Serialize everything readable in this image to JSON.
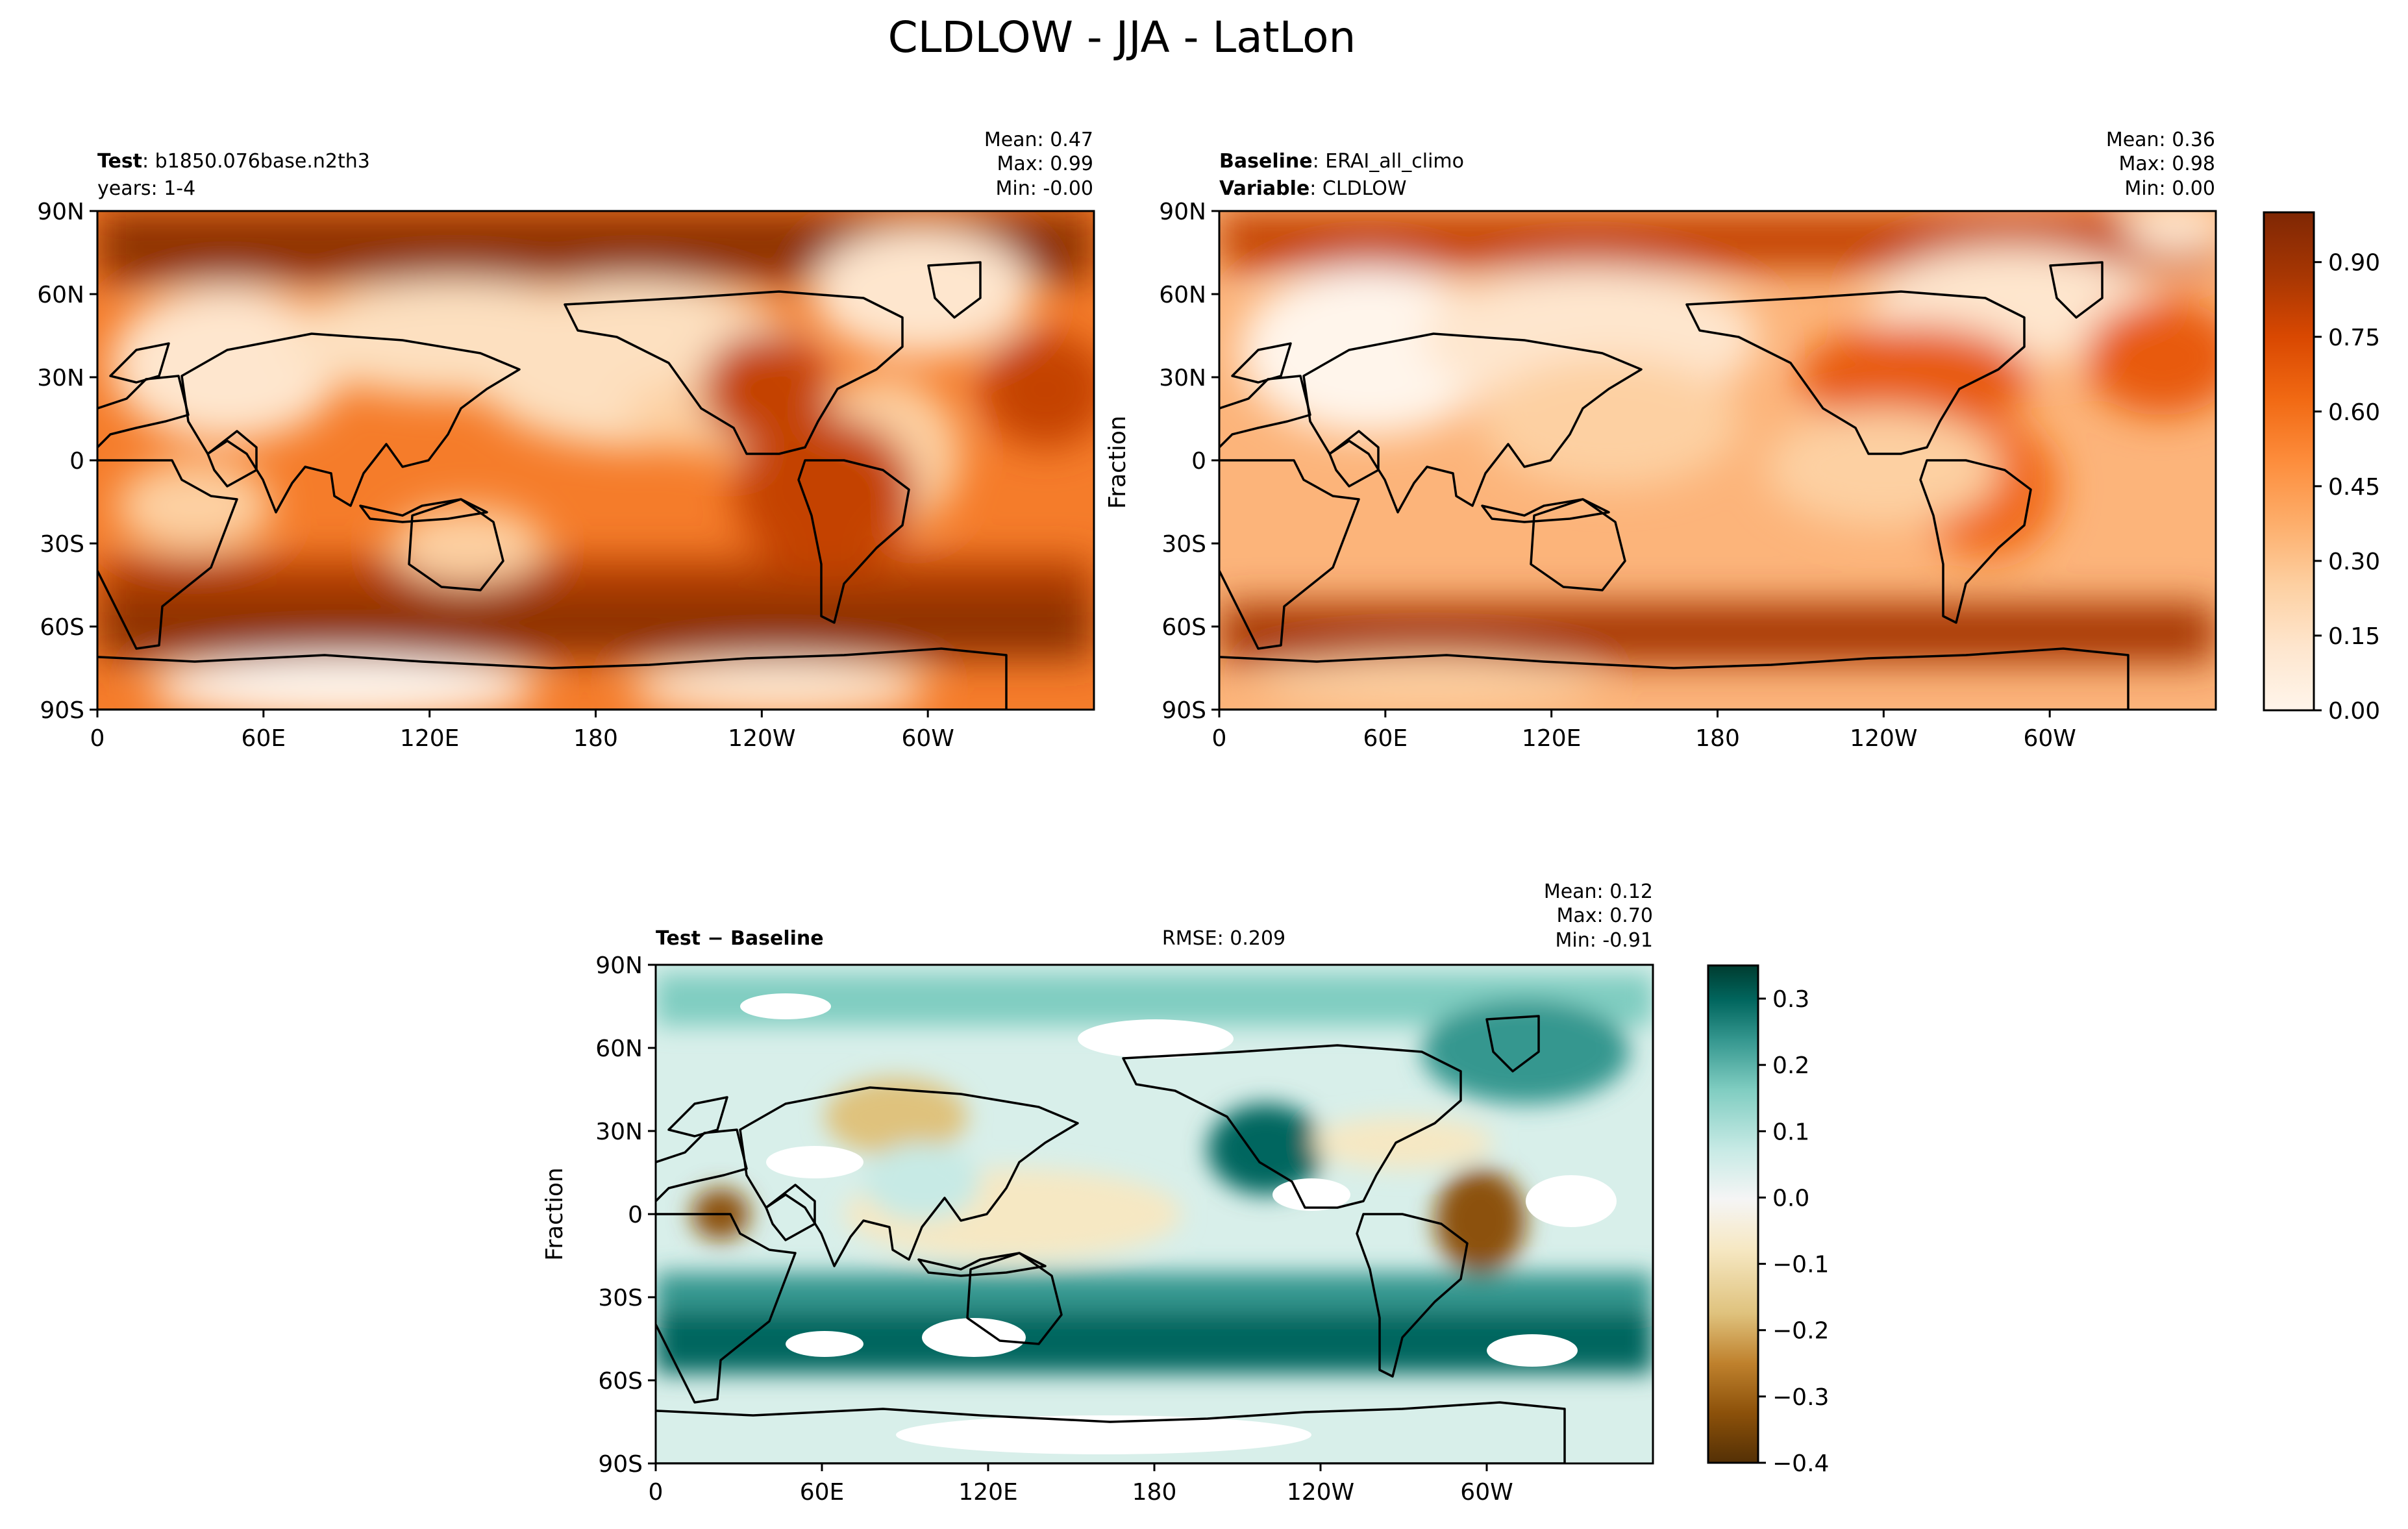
{
  "figure_title": "CLDLOW - JJA - LatLon",
  "colors": {
    "cmap_oranges": [
      "#fff5eb",
      "#fee6ce",
      "#fdd0a2",
      "#fdae6b",
      "#fd8d3c",
      "#f16913",
      "#d94801",
      "#a63603",
      "#7f2704"
    ],
    "cmap_brbg": [
      "#543005",
      "#8c510a",
      "#bf812d",
      "#dfc27d",
      "#f6e8c3",
      "#f5f5f5",
      "#c7eae5",
      "#80cdc1",
      "#35978f",
      "#01665e",
      "#003c30"
    ],
    "coast": "#000000",
    "missing": "#ffffff"
  },
  "panels": {
    "test": {
      "title_bold": "Test",
      "title_rest": ": b1850.076base.n2th3",
      "subtitle": "years: 1-4",
      "stats": [
        "Mean:  0.47",
        "Max:  0.99",
        "Min: -0.00"
      ]
    },
    "baseline": {
      "title_bold": "Baseline",
      "title_rest": ": ERAI_all_climo",
      "title2_bold": "Variable",
      "title2_rest": ": CLDLOW",
      "stats": [
        "Mean:  0.36",
        "Max:  0.98",
        "Min:  0.00"
      ],
      "ylabel": "Fraction"
    },
    "diff": {
      "title": "Test − Baseline",
      "rmse": "RMSE: 0.209",
      "stats": [
        "Mean:  0.12",
        "Max:  0.70",
        "Min: -0.91"
      ],
      "ylabel": "Fraction"
    }
  },
  "axes": {
    "yticks": [
      "90N",
      "60N",
      "30N",
      "0",
      "30S",
      "60S",
      "90S"
    ],
    "xticks": [
      "0",
      "60E",
      "120E",
      "180",
      "120W",
      "60W"
    ]
  },
  "colorbars": {
    "top": {
      "ticks": [
        "0.00",
        "0.15",
        "0.30",
        "0.45",
        "0.60",
        "0.75",
        "0.90"
      ],
      "range": [
        0,
        1
      ]
    },
    "diff": {
      "ticks": [
        "−0.4",
        "−0.3",
        "−0.2",
        "−0.1",
        "0.0",
        "0.1",
        "0.2",
        "0.3"
      ],
      "range": [
        -0.4,
        0.35
      ]
    }
  },
  "chart_data": [
    {
      "type": "heatmap",
      "title": "Test: b1850.076base.n2th3",
      "variable": "CLDLOW",
      "x": [
        "0",
        "60E",
        "120E",
        "180",
        "120W",
        "60W"
      ],
      "y": [
        "90N",
        "60N",
        "30N",
        "0",
        "30S",
        "60S",
        "90S"
      ],
      "zlim": [
        0,
        1
      ],
      "mean": 0.47,
      "max": 0.99,
      "min": -0.0
    },
    {
      "type": "heatmap",
      "title": "Baseline: ERAI_all_climo",
      "variable": "CLDLOW",
      "x": [
        "0",
        "60E",
        "120E",
        "180",
        "120W",
        "60W"
      ],
      "y": [
        "90N",
        "60N",
        "30N",
        "0",
        "30S",
        "60S",
        "90S"
      ],
      "zlim": [
        0,
        1
      ],
      "mean": 0.36,
      "max": 0.98,
      "min": 0.0
    },
    {
      "type": "heatmap",
      "title": "Test − Baseline",
      "x": [
        "0",
        "60E",
        "120E",
        "180",
        "120W",
        "60W"
      ],
      "y": [
        "90N",
        "60N",
        "30N",
        "0",
        "30S",
        "60S",
        "90S"
      ],
      "zlim": [
        -0.4,
        0.35
      ],
      "mean": 0.12,
      "max": 0.7,
      "min": -0.91,
      "rmse": 0.209
    }
  ]
}
